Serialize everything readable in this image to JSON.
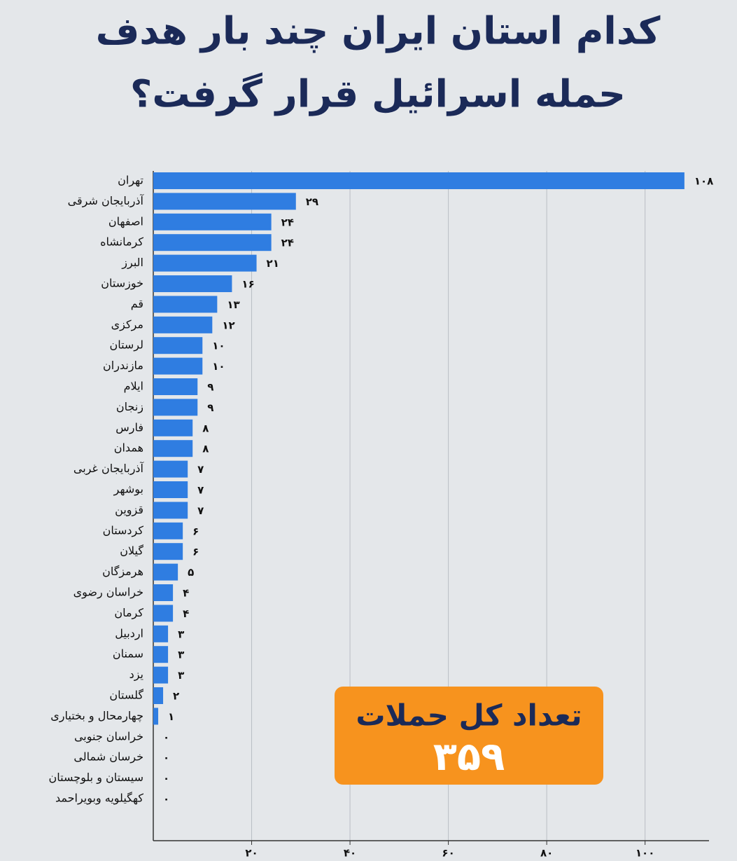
{
  "chart_data": {
    "type": "bar",
    "orientation": "horizontal",
    "title_lines": [
      "کدام استان ایران چند بار هدف",
      "حمله اسرائیل قرار گرفت؟"
    ],
    "categories": [
      "تهران",
      "آذربایجان شرقی",
      "اصفهان",
      "کرمانشاه",
      "البرز",
      "خوزستان",
      "قم",
      "مرکزی",
      "لرستان",
      "مازندران",
      "ایلام",
      "زنجان",
      "فارس",
      "همدان",
      "آذربایجان غربی",
      "بوشهر",
      "قزوین",
      "کردستان",
      "گیلان",
      "هرمزگان",
      "خراسان رضوی",
      "کرمان",
      "اردبیل",
      "سمنان",
      "یزد",
      "گلستان",
      "چهارمحال و بختیاری",
      "خراسان جنوبی",
      "خرسان شمالی",
      "سیستان و بلوچستان",
      "کهگیلویه وبویراحمد"
    ],
    "values": [
      108,
      29,
      24,
      24,
      21,
      16,
      13,
      12,
      10,
      10,
      9,
      9,
      8,
      8,
      7,
      7,
      7,
      6,
      6,
      5,
      4,
      4,
      3,
      3,
      3,
      2,
      1,
      0,
      0,
      0,
      0
    ],
    "value_labels": [
      "۱۰۸",
      "۲۹",
      "۲۴",
      "۲۴",
      "۲۱",
      "۱۶",
      "۱۳",
      "۱۲",
      "۱۰",
      "۱۰",
      "۹",
      "۹",
      "۸",
      "۸",
      "۷",
      "۷",
      "۷",
      "۶",
      "۶",
      "۵",
      "۴",
      "۴",
      "۳",
      "۳",
      "۳",
      "۲",
      "۱",
      "۰",
      "۰",
      "۰",
      "۰"
    ],
    "color": "#2f7de1",
    "xlim": [
      0,
      113
    ],
    "xticks": [
      {
        "value": 20,
        "label": "۲۰"
      },
      {
        "value": 40,
        "label": "۴۰"
      },
      {
        "value": 60,
        "label": "۶۰"
      },
      {
        "value": 80,
        "label": "۸۰"
      },
      {
        "value": 100,
        "label": "۱۰۰"
      }
    ],
    "grid": true,
    "annotation_lines": [
      "تعداد کل حملات",
      "۳۵۹"
    ],
    "annotation_color": "#f7931e"
  }
}
